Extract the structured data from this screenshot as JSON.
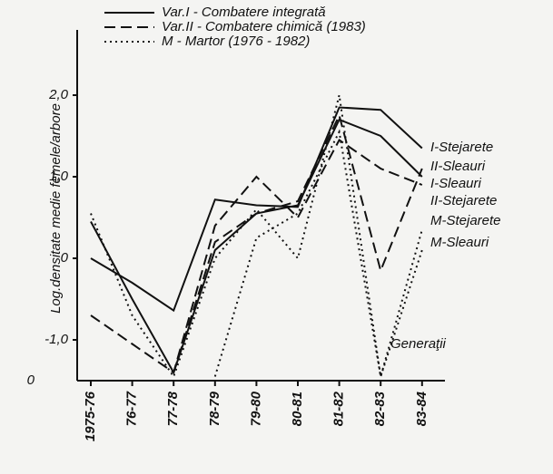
{
  "chart_data": {
    "type": "line",
    "y_label": "Log.densitate medie femele/arbore",
    "categories": [
      "1975-76",
      "76-77",
      "77-78",
      "78-79",
      "79-80",
      "80-81",
      "81-82",
      "82-83",
      "83-84"
    ],
    "series": [
      {
        "name": "I-Stejarete",
        "color": "#111111",
        "dash": "solid",
        "values": [
          0,
          -0.3,
          -0.64,
          0.72,
          0.65,
          0.63,
          1.85,
          1.82,
          1.35
        ]
      },
      {
        "name": "II-Sleauri",
        "color": "#111111",
        "dash": "dashed",
        "values": [
          null,
          null,
          -1.4,
          0.2,
          0.55,
          0.7,
          1.75,
          -0.15,
          1.1
        ]
      },
      {
        "name": "I-Sleauri",
        "color": "#111111",
        "dash": "solid",
        "values": [
          0.45,
          -0.5,
          -1.4,
          0.1,
          0.55,
          0.65,
          1.7,
          1.5,
          1.0
        ]
      },
      {
        "name": "II-Stejarete",
        "color": "#111111",
        "dash": "dashed",
        "values": [
          -0.7,
          -1.05,
          -1.4,
          0.4,
          1.0,
          0.5,
          1.45,
          1.1,
          0.9
        ]
      },
      {
        "name": "M-Stejarete",
        "color": "#111111",
        "dash": "dotted",
        "values": [
          0.55,
          -0.7,
          -1.45,
          0.0,
          0.6,
          0.0,
          2.0,
          -1.45,
          0.35
        ]
      },
      {
        "name": "M-Sleauri",
        "color": "#111111",
        "dash": "dotted",
        "values": [
          null,
          null,
          null,
          -1.45,
          0.25,
          0.55,
          1.55,
          -1.45,
          0.1
        ]
      }
    ],
    "legend": [
      {
        "label": "Var.I - Combatere integrată",
        "dash": "solid"
      },
      {
        "label": "Var.II - Combatere chimică (1983)",
        "dash": "dashed"
      },
      {
        "label": "M - Martor (1976 - 1982)",
        "dash": "dotted"
      }
    ],
    "annotations": [
      "Generaţii",
      "0"
    ],
    "ylim": [
      -1.5,
      2.8
    ],
    "yticks": [
      {
        "value": 2,
        "label": "2,0"
      },
      {
        "value": 1,
        "label": "1,0"
      },
      0,
      {
        "value": -1,
        "label": "-1,0"
      }
    ]
  }
}
